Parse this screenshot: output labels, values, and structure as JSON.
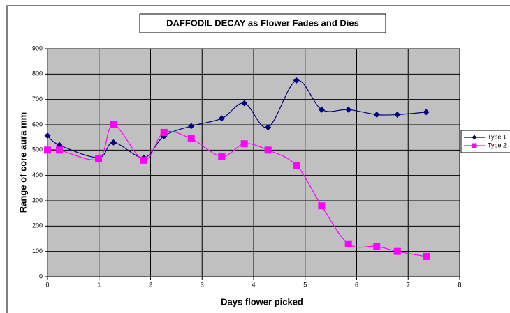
{
  "chart_data": {
    "type": "line",
    "title": "DAFFODIL DECAY as Flower Fades and Dies",
    "x_label": "Days flower picked",
    "y_label": "Range of core aura  mm",
    "x": [
      0,
      0.23,
      0.99,
      1.28,
      1.87,
      2.26,
      2.79,
      3.38,
      3.82,
      4.28,
      4.83,
      5.32,
      5.84,
      6.39,
      6.79,
      7.35
    ],
    "series": [
      {
        "name": "Type 1",
        "color": "#000080",
        "marker": "diamond",
        "values": [
          557,
          520,
          470,
          530,
          470,
          555,
          595,
          625,
          685,
          590,
          775,
          660,
          660,
          640,
          640,
          650
        ]
      },
      {
        "name": "Type 2",
        "color": "#ff00ff",
        "marker": "square",
        "values": [
          500,
          500,
          465,
          600,
          460,
          570,
          545,
          475,
          525,
          500,
          440,
          280,
          130,
          120,
          100,
          80
        ]
      }
    ],
    "xlim": [
      0,
      8
    ],
    "xticks": [
      0,
      1,
      2,
      3,
      4,
      5,
      6,
      7,
      8
    ],
    "ylim": [
      0,
      900
    ],
    "yticks": [
      0,
      100,
      200,
      300,
      400,
      500,
      600,
      700,
      800,
      900
    ],
    "grid": true,
    "legend": "right"
  }
}
